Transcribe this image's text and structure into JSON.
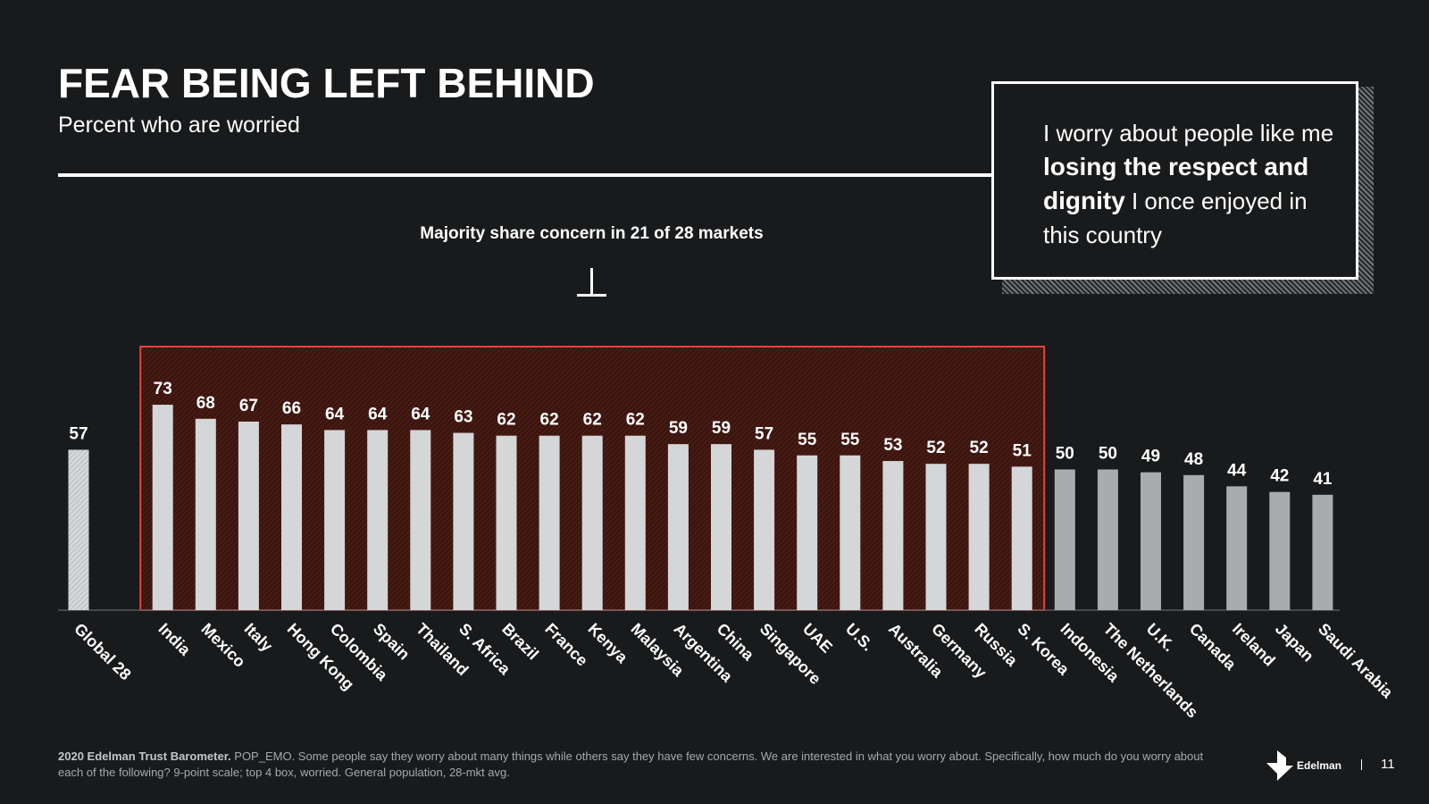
{
  "slide": {
    "title": "FEAR BEING LEFT BEHIND",
    "subtitle": "Percent who are worried",
    "page_number": "11",
    "brand": "Edelman"
  },
  "quote": {
    "part1": "I worry about people like me ",
    "bold": "losing the respect and dignity",
    "part2": " I once enjoyed in this country"
  },
  "annotation": {
    "text": "Majority share concern in 21 of 28 markets"
  },
  "footnote": {
    "bold": "2020 Edelman Trust Barometer.",
    "text": " POP_EMO. Some people say they worry about many things while others say they have few concerns. We are interested in what you worry about. Specifically, how much do you worry about each of the following? 9-point scale; top 4 box, worried. General population, 28-mkt avg."
  },
  "colors": {
    "background": "#181a1c",
    "highlight_fill": "#3a150f",
    "highlight_border": "#e0463a",
    "bar_majority": "#d4d6d8",
    "bar_minority": "#a9acae",
    "bar_global": "#c7c9cb"
  },
  "chart_data": {
    "type": "bar",
    "categories": [
      "Global 28",
      "India",
      "Mexico",
      "Italy",
      "Hong Kong",
      "Colombia",
      "Spain",
      "Thailand",
      "S. Africa",
      "Brazil",
      "France",
      "Kenya",
      "Malaysia",
      "Argentina",
      "China",
      "Singapore",
      "UAE",
      "U.S.",
      "Australia",
      "Germany",
      "Russia",
      "S. Korea",
      "Indonesia",
      "The Netherlands",
      "U.K.",
      "Canada",
      "Ireland",
      "Japan",
      "Saudi Arabia"
    ],
    "values": [
      57,
      73,
      68,
      67,
      66,
      64,
      64,
      64,
      63,
      62,
      62,
      62,
      62,
      59,
      59,
      57,
      55,
      55,
      53,
      52,
      52,
      51,
      50,
      50,
      49,
      48,
      44,
      42,
      41
    ],
    "groups": [
      "global",
      "majority",
      "majority",
      "majority",
      "majority",
      "majority",
      "majority",
      "majority",
      "majority",
      "majority",
      "majority",
      "majority",
      "majority",
      "majority",
      "majority",
      "majority",
      "majority",
      "majority",
      "majority",
      "majority",
      "majority",
      "majority",
      "minority",
      "minority",
      "minority",
      "minority",
      "minority",
      "minority",
      "minority"
    ],
    "highlight": {
      "from": "India",
      "to": "S. Korea",
      "label": "Majority share concern in 21 of 28 markets"
    },
    "title": "FEAR BEING LEFT BEHIND",
    "subtitle": "Percent who are worried",
    "xlabel": "",
    "ylabel": "",
    "ylim": [
      0,
      100
    ],
    "grid": false,
    "data_labels": true
  }
}
